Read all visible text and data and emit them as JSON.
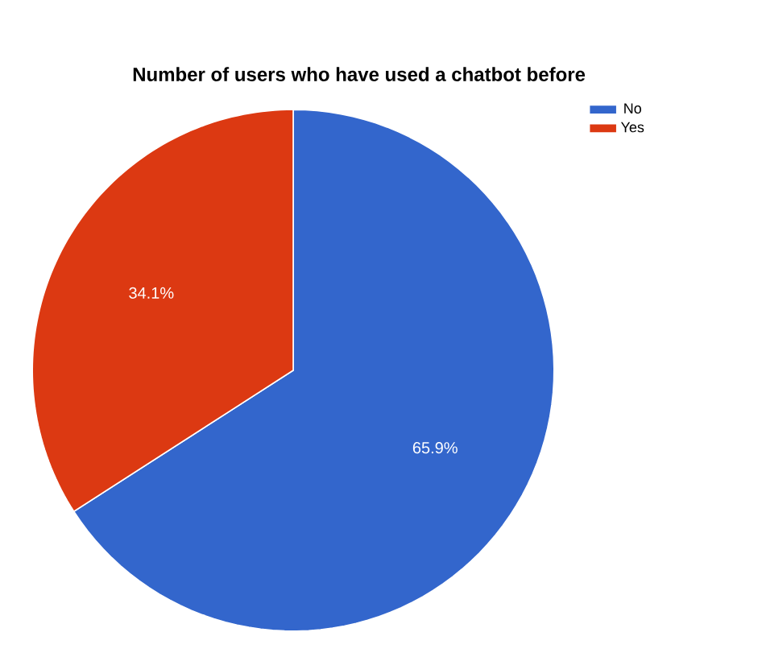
{
  "chart_data": {
    "type": "pie",
    "title": "Number of users who have used a chatbot before",
    "categories": [
      "No",
      "Yes"
    ],
    "values": [
      65.9,
      34.1
    ],
    "value_labels": [
      "65.9%",
      "34.1%"
    ],
    "colors": [
      "#3366cc",
      "#dc3912"
    ],
    "legend": "top right"
  }
}
